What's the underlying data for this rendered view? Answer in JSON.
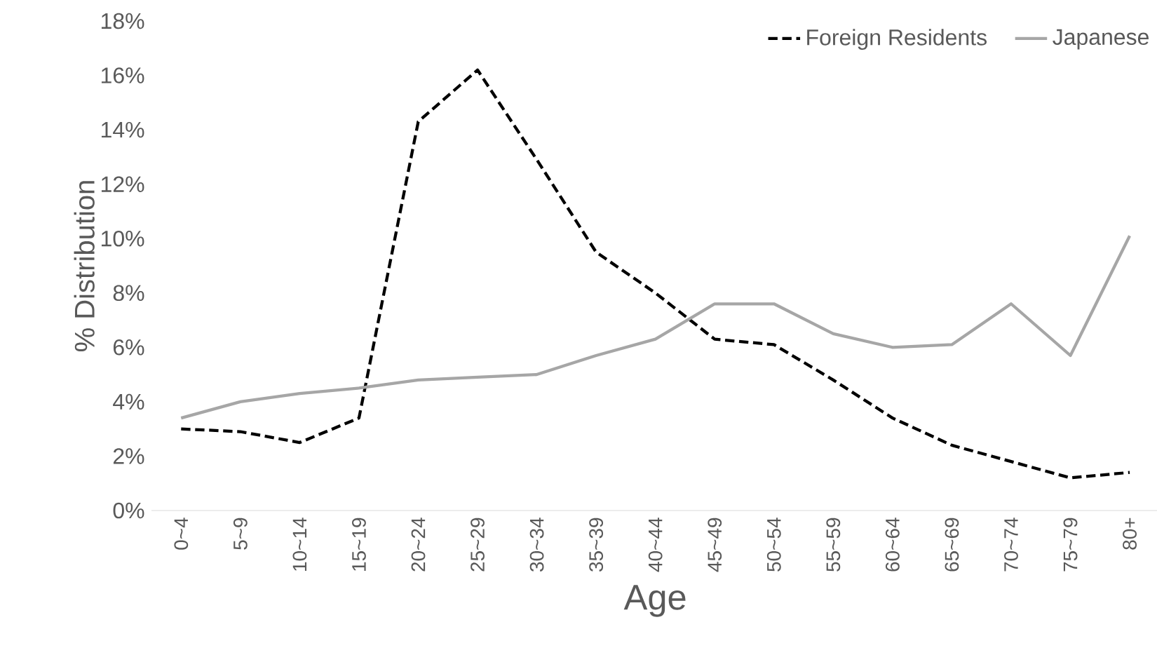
{
  "chart_data": {
    "type": "line",
    "xlabel": "Age",
    "ylabel": "% Distribution",
    "categories": [
      "0~4",
      "5~9",
      "10~14",
      "15~19",
      "20~24",
      "25~29",
      "30~34",
      "35~39",
      "40~44",
      "45~49",
      "50~54",
      "55~59",
      "60~64",
      "65~69",
      "70~74",
      "75~79",
      "80+"
    ],
    "series": [
      {
        "name": "Foreign Residents",
        "color": "#000000",
        "line_style": "dashed",
        "values": [
          3.0,
          2.9,
          2.5,
          3.4,
          14.3,
          16.2,
          12.9,
          9.5,
          8.0,
          6.3,
          6.1,
          4.8,
          3.4,
          2.4,
          1.8,
          1.2,
          1.4
        ]
      },
      {
        "name": "Japanese",
        "color": "#a6a6a6",
        "line_style": "solid",
        "values": [
          3.4,
          4.0,
          4.3,
          4.5,
          4.8,
          4.9,
          5.0,
          5.7,
          6.3,
          7.6,
          7.6,
          6.5,
          6.0,
          6.1,
          7.6,
          5.7,
          10.1
        ]
      }
    ],
    "ylim": [
      0,
      18
    ],
    "yticks": [
      {
        "value": 0,
        "label": "0%"
      },
      {
        "value": 2,
        "label": "2%"
      },
      {
        "value": 4,
        "label": "4%"
      },
      {
        "value": 6,
        "label": "6%"
      },
      {
        "value": 8,
        "label": "8%"
      },
      {
        "value": 10,
        "label": "10%"
      },
      {
        "value": 12,
        "label": "12%"
      },
      {
        "value": 14,
        "label": "14%"
      },
      {
        "value": 16,
        "label": "16%"
      },
      {
        "value": 18,
        "label": "18%"
      }
    ],
    "grid": false,
    "legend": "top right",
    "marker": "none"
  }
}
